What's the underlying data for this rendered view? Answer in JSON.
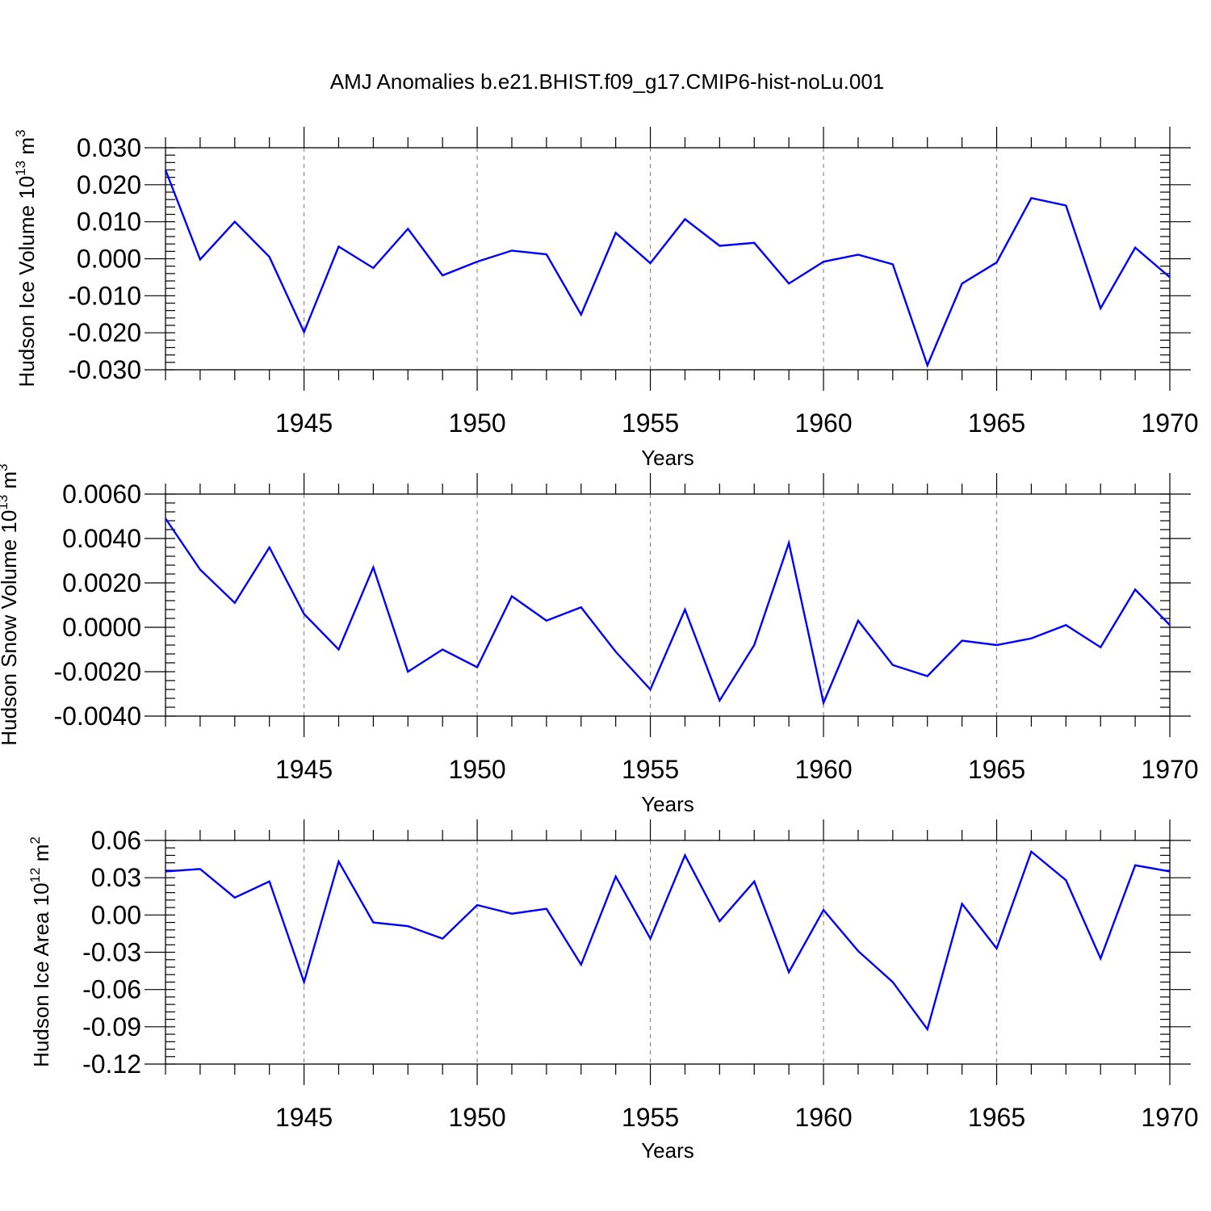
{
  "figure": {
    "title": "AMJ Anomalies b.e21.BHIST.f09_g17.CMIP6-hist-noLu.001",
    "line_color": "#0000ff"
  },
  "chart_data": [
    {
      "type": "line",
      "ylabel": "Hudson Ice Volume 10",
      "ylabel_exponent": "13",
      "ylabel_unit": " m",
      "ylabel_unit_exponent": "3",
      "xlabel": "Years",
      "xlim": [
        1941,
        1970
      ],
      "ylim": [
        -0.03,
        0.03
      ],
      "xticks": [
        1945,
        1950,
        1955,
        1960,
        1965,
        1970
      ],
      "yticks": [
        0.03,
        0.02,
        0.01,
        0.0,
        -0.01,
        -0.02,
        -0.03
      ],
      "yticklabels": [
        "0.030",
        "0.020",
        "0.010",
        "0.000",
        "-0.010",
        "-0.020",
        "-0.030"
      ],
      "minor_ytick_step": 0.002,
      "x": [
        1941,
        1942,
        1943,
        1944,
        1945,
        1946,
        1947,
        1948,
        1949,
        1950,
        1951,
        1952,
        1953,
        1954,
        1955,
        1956,
        1957,
        1958,
        1959,
        1960,
        1961,
        1962,
        1963,
        1964,
        1965,
        1966,
        1967,
        1968,
        1969,
        1970
      ],
      "series": [
        {
          "values": [
            0.024,
            -0.0002,
            0.01,
            0.0005,
            -0.0198,
            0.0033,
            -0.0025,
            0.0081,
            -0.0045,
            -0.0008,
            0.0022,
            0.0012,
            -0.0151,
            0.007,
            -0.0012,
            0.0107,
            0.0035,
            0.0043,
            -0.0067,
            -0.0008,
            0.0011,
            -0.0015,
            -0.0288,
            -0.0067,
            -0.001,
            0.0164,
            0.0144,
            -0.0134,
            0.003,
            -0.005
          ]
        }
      ],
      "grid": "dashed vertical lines at x tick years"
    },
    {
      "type": "line",
      "ylabel": "Hudson Snow Volume 10",
      "ylabel_exponent": "13",
      "ylabel_unit": " m",
      "ylabel_unit_exponent": "3",
      "xlabel": "Years",
      "xlim": [
        1941,
        1970
      ],
      "ylim": [
        -0.004,
        0.006
      ],
      "xticks": [
        1945,
        1950,
        1955,
        1960,
        1965,
        1970
      ],
      "yticks": [
        0.006,
        0.004,
        0.002,
        0.0,
        -0.002,
        -0.004
      ],
      "yticklabels": [
        "0.0060",
        "0.0040",
        "0.0020",
        "0.0000",
        "-0.0020",
        "-0.0040"
      ],
      "minor_ytick_step": 0.0004,
      "x": [
        1941,
        1942,
        1943,
        1944,
        1945,
        1946,
        1947,
        1948,
        1949,
        1950,
        1951,
        1952,
        1953,
        1954,
        1955,
        1956,
        1957,
        1958,
        1959,
        1960,
        1961,
        1962,
        1963,
        1964,
        1965,
        1966,
        1967,
        1968,
        1969,
        1970
      ],
      "series": [
        {
          "values": [
            0.0049,
            0.0026,
            0.0011,
            0.0036,
            0.0006,
            -0.001,
            0.0027,
            -0.002,
            -0.001,
            -0.0018,
            0.0014,
            0.0003,
            0.0009,
            -0.0011,
            -0.0028,
            0.0008,
            -0.0033,
            -0.0008,
            0.0038,
            -0.0034,
            0.0003,
            -0.0017,
            -0.0022,
            -0.0006,
            -0.0008,
            -0.0005,
            0.0001,
            -0.0009,
            0.0017,
            0.0001
          ]
        }
      ],
      "grid": "dashed vertical lines at x tick years"
    },
    {
      "type": "line",
      "ylabel": "Hudson Ice Area 10",
      "ylabel_exponent": "12",
      "ylabel_unit": " m",
      "ylabel_unit_exponent": "2",
      "xlabel": "Years",
      "xlim": [
        1941,
        1970
      ],
      "ylim": [
        -0.12,
        0.06
      ],
      "xticks": [
        1945,
        1950,
        1955,
        1960,
        1965,
        1970
      ],
      "yticks": [
        0.06,
        0.03,
        0.0,
        -0.03,
        -0.06,
        -0.09,
        -0.12
      ],
      "yticklabels": [
        "0.06",
        "0.03",
        "0.00",
        "-0.03",
        "-0.06",
        "-0.09",
        "-0.12"
      ],
      "minor_ytick_step": 0.006,
      "x": [
        1941,
        1942,
        1943,
        1944,
        1945,
        1946,
        1947,
        1948,
        1949,
        1950,
        1951,
        1952,
        1953,
        1954,
        1955,
        1956,
        1957,
        1958,
        1959,
        1960,
        1961,
        1962,
        1963,
        1964,
        1965,
        1966,
        1967,
        1968,
        1969,
        1970
      ],
      "series": [
        {
          "values": [
            0.035,
            0.037,
            0.014,
            0.027,
            -0.054,
            0.043,
            -0.006,
            -0.009,
            -0.019,
            0.008,
            0.001,
            0.005,
            -0.04,
            0.031,
            -0.019,
            0.048,
            -0.005,
            0.027,
            -0.046,
            0.004,
            -0.029,
            -0.054,
            -0.092,
            0.009,
            -0.027,
            0.051,
            0.028,
            -0.035,
            0.04,
            0.035
          ]
        }
      ],
      "grid": "dashed vertical lines at x tick years"
    }
  ]
}
